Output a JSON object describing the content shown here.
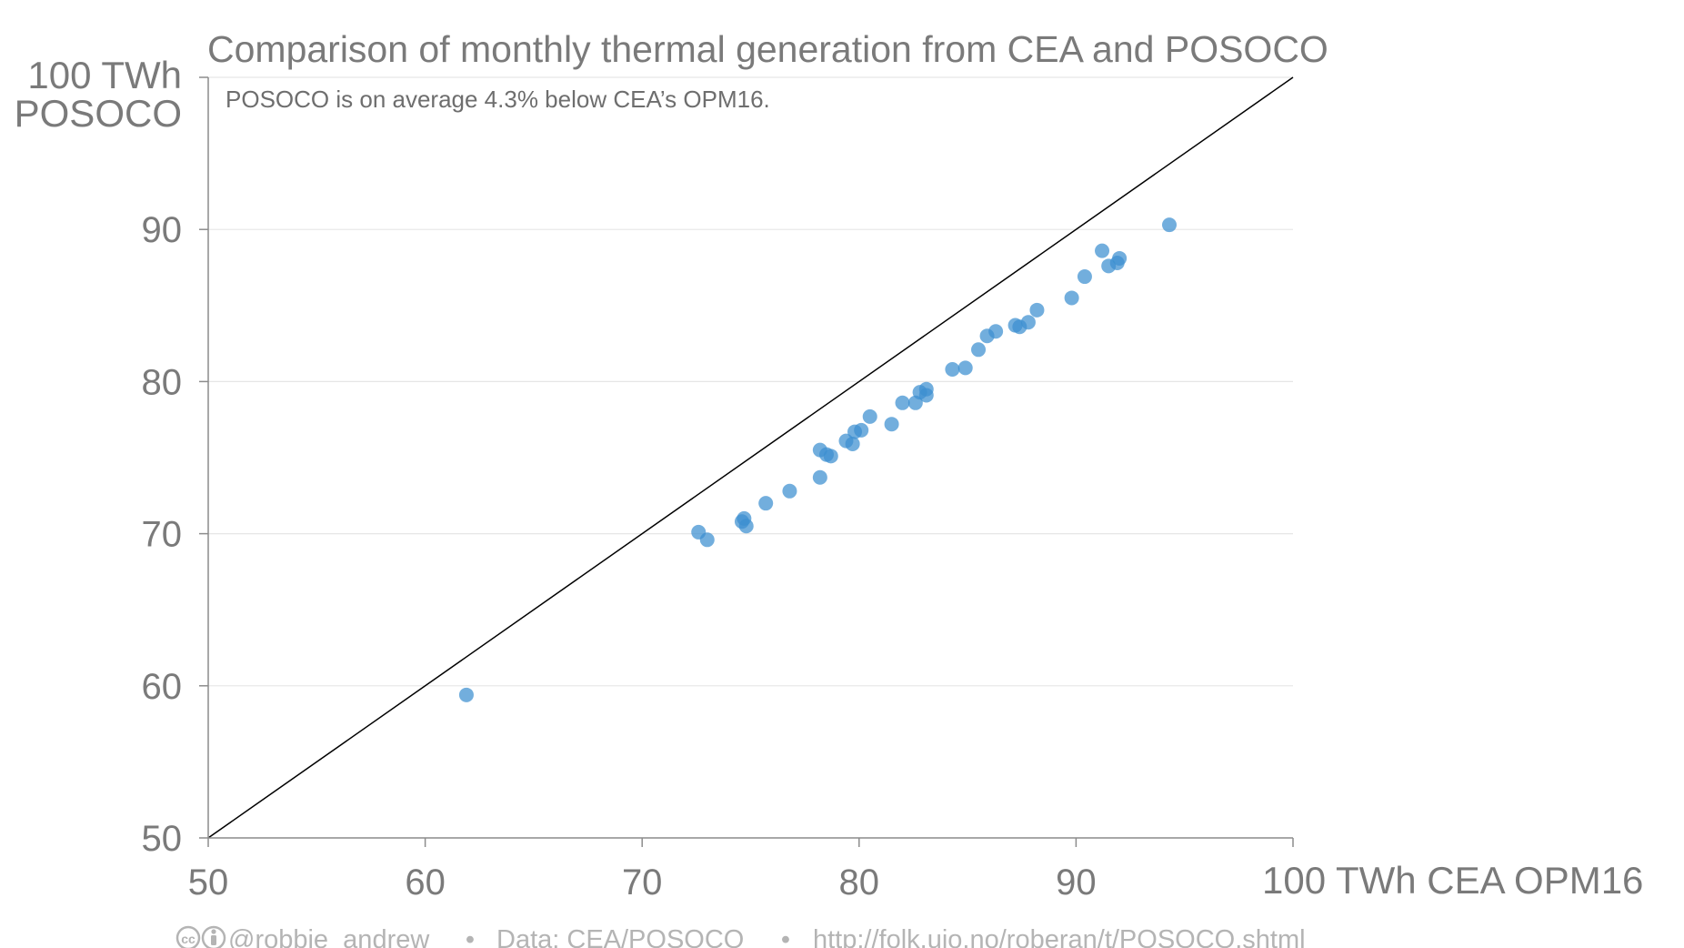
{
  "chart_data": {
    "type": "scatter",
    "title": "Comparison of monthly thermal generation from CEA and POSOCO",
    "subtitle": "POSOCO is on average 4.3% below CEA’s OPM16.",
    "xlabel": "TWh CEA OPM16",
    "ylabel_line1": "TWh",
    "ylabel_line2": "POSOCO",
    "xlim": [
      50,
      100
    ],
    "ylim": [
      50,
      100
    ],
    "x_ticks": [
      "50",
      "60",
      "70",
      "80",
      "90",
      "100"
    ],
    "y_ticks": [
      "50",
      "60",
      "70",
      "80",
      "90",
      "100"
    ],
    "grid": "horizontal",
    "reference_line": "y = x",
    "point_color": "#3b8fd0",
    "points": [
      {
        "x": 61.9,
        "y": 59.4
      },
      {
        "x": 72.6,
        "y": 70.1
      },
      {
        "x": 73.0,
        "y": 69.6
      },
      {
        "x": 74.6,
        "y": 70.8
      },
      {
        "x": 74.7,
        "y": 71.0
      },
      {
        "x": 74.8,
        "y": 70.5
      },
      {
        "x": 75.7,
        "y": 72.0
      },
      {
        "x": 76.8,
        "y": 72.8
      },
      {
        "x": 78.2,
        "y": 75.5
      },
      {
        "x": 78.2,
        "y": 73.7
      },
      {
        "x": 78.5,
        "y": 75.2
      },
      {
        "x": 78.7,
        "y": 75.1
      },
      {
        "x": 79.4,
        "y": 76.1
      },
      {
        "x": 79.7,
        "y": 75.9
      },
      {
        "x": 79.8,
        "y": 76.7
      },
      {
        "x": 80.1,
        "y": 76.8
      },
      {
        "x": 80.5,
        "y": 77.7
      },
      {
        "x": 81.5,
        "y": 77.2
      },
      {
        "x": 82.0,
        "y": 78.6
      },
      {
        "x": 82.6,
        "y": 78.6
      },
      {
        "x": 82.8,
        "y": 79.3
      },
      {
        "x": 83.1,
        "y": 79.5
      },
      {
        "x": 83.1,
        "y": 79.1
      },
      {
        "x": 84.3,
        "y": 80.8
      },
      {
        "x": 84.9,
        "y": 80.9
      },
      {
        "x": 85.5,
        "y": 82.1
      },
      {
        "x": 85.9,
        "y": 83.0
      },
      {
        "x": 86.3,
        "y": 83.3
      },
      {
        "x": 87.2,
        "y": 83.7
      },
      {
        "x": 87.4,
        "y": 83.6
      },
      {
        "x": 87.8,
        "y": 83.9
      },
      {
        "x": 88.2,
        "y": 84.7
      },
      {
        "x": 89.8,
        "y": 85.5
      },
      {
        "x": 90.4,
        "y": 86.9
      },
      {
        "x": 91.2,
        "y": 88.6
      },
      {
        "x": 91.5,
        "y": 87.6
      },
      {
        "x": 91.9,
        "y": 87.8
      },
      {
        "x": 92.0,
        "y": 88.1
      },
      {
        "x": 94.3,
        "y": 90.3
      }
    ]
  },
  "footer": {
    "license_icon": "creative-commons-by-icon",
    "author": "@robbie_andrew",
    "separator": "•",
    "source": "Data: CEA/POSOCO",
    "url": "http://folk.uio.no/roberan/t/POSOCO.shtml"
  }
}
